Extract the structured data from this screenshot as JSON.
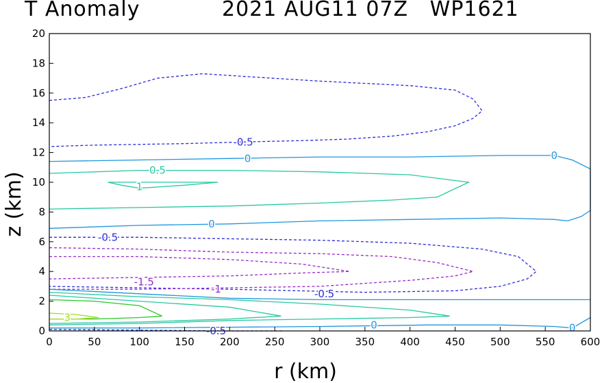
{
  "title_left": "T Anomaly",
  "title_right": "2021 AUG11 07Z   WP1621",
  "chart_data": {
    "type": "contour",
    "title": "T Anomaly",
    "subtitle": "2021 AUG11 07Z   WP1621",
    "xlabel": "r (km)",
    "ylabel": "z (km)",
    "xlim": [
      0,
      600
    ],
    "ylim": [
      0,
      20
    ],
    "xticks": [
      0,
      50,
      100,
      150,
      200,
      250,
      300,
      350,
      400,
      450,
      500,
      550,
      600
    ],
    "yticks": [
      0,
      2,
      4,
      6,
      8,
      10,
      12,
      14,
      16,
      18,
      20
    ],
    "grid": false,
    "contours": [
      {
        "level": -0.5,
        "style": "dashed",
        "color": "#2a2ad8",
        "points": [
          [
            0,
            15.5
          ],
          [
            40,
            15.7
          ],
          [
            80,
            16.3
          ],
          [
            120,
            17.0
          ],
          [
            170,
            17.3
          ],
          [
            220,
            17.1
          ],
          [
            300,
            16.8
          ],
          [
            400,
            16.5
          ],
          [
            450,
            16.2
          ],
          [
            470,
            15.6
          ],
          [
            480,
            14.8
          ],
          [
            470,
            14.3
          ],
          [
            450,
            13.8
          ],
          [
            420,
            13.4
          ],
          [
            380,
            13.1
          ],
          [
            330,
            12.9
          ],
          [
            280,
            12.8
          ],
          [
            210,
            12.7
          ],
          [
            150,
            12.6
          ],
          [
            50,
            12.5
          ],
          [
            0,
            12.4
          ]
        ]
      },
      {
        "level": 0,
        "style": "solid",
        "color": "#1e96dc",
        "points": [
          [
            0,
            11.4
          ],
          [
            100,
            11.5
          ],
          [
            200,
            11.6
          ],
          [
            300,
            11.7
          ],
          [
            400,
            11.7
          ],
          [
            500,
            11.8
          ],
          [
            560,
            11.8
          ],
          [
            580,
            11.5
          ],
          [
            600,
            10.9
          ],
          [
            600,
            8.1
          ],
          [
            590,
            7.7
          ],
          [
            575,
            7.4
          ],
          [
            560,
            7.5
          ],
          [
            500,
            7.6
          ],
          [
            400,
            7.5
          ],
          [
            300,
            7.4
          ],
          [
            200,
            7.2
          ],
          [
            100,
            7.1
          ],
          [
            0,
            6.9
          ]
        ]
      },
      {
        "level": 0.5,
        "style": "solid",
        "color": "#28c8a0",
        "points": [
          [
            0,
            10.6
          ],
          [
            100,
            10.8
          ],
          [
            200,
            10.8
          ],
          [
            300,
            10.7
          ],
          [
            400,
            10.5
          ],
          [
            465,
            10.0
          ],
          [
            430,
            9.0
          ],
          [
            380,
            8.8
          ],
          [
            300,
            8.6
          ],
          [
            200,
            8.4
          ],
          [
            100,
            8.3
          ],
          [
            0,
            8.2
          ]
        ]
      },
      {
        "level": 1,
        "style": "solid",
        "color": "#28c8a0",
        "points": [
          [
            65,
            10.0
          ],
          [
            120,
            10.0
          ],
          [
            187,
            10.0
          ],
          [
            150,
            9.8
          ],
          [
            100,
            9.6
          ],
          [
            80,
            9.8
          ],
          [
            65,
            10.0
          ]
        ]
      },
      {
        "level": -0.5,
        "style": "dashed",
        "color": "#2a2ad8",
        "points": [
          [
            0,
            6.3
          ],
          [
            100,
            6.3
          ],
          [
            200,
            6.2
          ],
          [
            300,
            6.1
          ],
          [
            400,
            5.9
          ],
          [
            480,
            5.5
          ],
          [
            520,
            5.0
          ],
          [
            540,
            4.0
          ],
          [
            530,
            3.5
          ],
          [
            500,
            3.0
          ],
          [
            450,
            2.7
          ],
          [
            350,
            2.6
          ],
          [
            200,
            2.8
          ],
          [
            100,
            2.9
          ],
          [
            0,
            3.0
          ]
        ]
      },
      {
        "level": -1,
        "style": "dashed",
        "color": "#9628c8",
        "points": [
          [
            0,
            5.6
          ],
          [
            100,
            5.5
          ],
          [
            200,
            5.3
          ],
          [
            300,
            5.2
          ],
          [
            380,
            5.0
          ],
          [
            430,
            4.6
          ],
          [
            470,
            4.0
          ],
          [
            450,
            3.7
          ],
          [
            400,
            3.4
          ],
          [
            300,
            3.0
          ],
          [
            200,
            2.9
          ],
          [
            100,
            2.8
          ],
          [
            0,
            2.8
          ]
        ]
      },
      {
        "level": -1.5,
        "style": "dashed",
        "color": "#9628c8",
        "points": [
          [
            0,
            5.0
          ],
          [
            100,
            5.0
          ],
          [
            200,
            4.8
          ],
          [
            280,
            4.5
          ],
          [
            333,
            4.0
          ],
          [
            280,
            3.9
          ],
          [
            200,
            3.7
          ],
          [
            100,
            3.6
          ],
          [
            0,
            3.5
          ]
        ]
      },
      {
        "level": 0,
        "style": "solid",
        "color": "#1e96dc",
        "points": [
          [
            0,
            2.8
          ],
          [
            100,
            2.5
          ],
          [
            200,
            2.2
          ],
          [
            300,
            2.1
          ],
          [
            400,
            2.1
          ],
          [
            500,
            2.1
          ],
          [
            600,
            2.1
          ]
        ]
      },
      {
        "level": 0.5,
        "style": "solid",
        "color": "#28c8a0",
        "points": [
          [
            0,
            2.6
          ],
          [
            100,
            2.3
          ],
          [
            200,
            2.1
          ],
          [
            300,
            1.8
          ],
          [
            400,
            1.4
          ],
          [
            444,
            1.0
          ],
          [
            400,
            0.9
          ],
          [
            300,
            0.8
          ],
          [
            200,
            0.7
          ],
          [
            100,
            0.5
          ],
          [
            0,
            0.4
          ]
        ]
      },
      {
        "level": 1,
        "style": "solid",
        "color": "#28c8a0",
        "points": [
          [
            0,
            2.4
          ],
          [
            100,
            2.0
          ],
          [
            200,
            1.6
          ],
          [
            257,
            1.0
          ],
          [
            200,
            0.8
          ],
          [
            100,
            0.6
          ],
          [
            0,
            0.5
          ]
        ]
      },
      {
        "level": 2,
        "style": "solid",
        "color": "#28c828",
        "points": [
          [
            0,
            2.1
          ],
          [
            50,
            2.0
          ],
          [
            100,
            1.7
          ],
          [
            125,
            1.0
          ],
          [
            100,
            0.9
          ],
          [
            50,
            0.8
          ],
          [
            0,
            0.8
          ]
        ]
      },
      {
        "level": 3,
        "style": "solid",
        "color": "#a0dc28",
        "points": [
          [
            0,
            1.2
          ],
          [
            30,
            1.1
          ],
          [
            55,
            0.9
          ],
          [
            30,
            0.8
          ],
          [
            0,
            0.8
          ]
        ]
      },
      {
        "level": 0,
        "style": "solid",
        "color": "#1e96dc",
        "points": [
          [
            0,
            0.2
          ],
          [
            100,
            0.2
          ],
          [
            300,
            0.3
          ],
          [
            420,
            0.4
          ],
          [
            500,
            0.4
          ],
          [
            560,
            0.3
          ],
          [
            580,
            0.2
          ],
          [
            600,
            0.9
          ]
        ]
      },
      {
        "level": -0.5,
        "style": "dashed",
        "color": "#2a2ad8",
        "points": [
          [
            0,
            0.1
          ],
          [
            100,
            0.05
          ],
          [
            200,
            0.0
          ],
          [
            260,
            0.0
          ]
        ]
      }
    ],
    "contour_labels": [
      {
        "text": "-0.5",
        "x": 215,
        "y": 12.7,
        "color": "#2a2ad8"
      },
      {
        "text": "0",
        "x": 220,
        "y": 11.6,
        "color": "#1e96dc"
      },
      {
        "text": "0",
        "x": 560,
        "y": 11.8,
        "color": "#1e96dc"
      },
      {
        "text": "0.5",
        "x": 120,
        "y": 10.8,
        "color": "#28c8a0"
      },
      {
        "text": "1",
        "x": 100,
        "y": 9.7,
        "color": "#28c8a0"
      },
      {
        "text": "0",
        "x": 180,
        "y": 7.2,
        "color": "#1e96dc"
      },
      {
        "text": "-0.5",
        "x": 65,
        "y": 6.3,
        "color": "#2a2ad8"
      },
      {
        "text": "-1.5",
        "x": 105,
        "y": 3.3,
        "color": "#9628c8"
      },
      {
        "text": "-1",
        "x": 185,
        "y": 2.8,
        "color": "#9628c8"
      },
      {
        "text": "-0.5",
        "x": 305,
        "y": 2.5,
        "color": "#2a2ad8"
      },
      {
        "text": "3",
        "x": 20,
        "y": 0.9,
        "color": "#a0dc28"
      },
      {
        "text": "0",
        "x": 360,
        "y": 0.4,
        "color": "#1e96dc"
      },
      {
        "text": "0",
        "x": 580,
        "y": 0.2,
        "color": "#1e96dc"
      },
      {
        "text": "-0.5",
        "x": 185,
        "y": 0.0,
        "color": "#2a2ad8"
      }
    ]
  }
}
